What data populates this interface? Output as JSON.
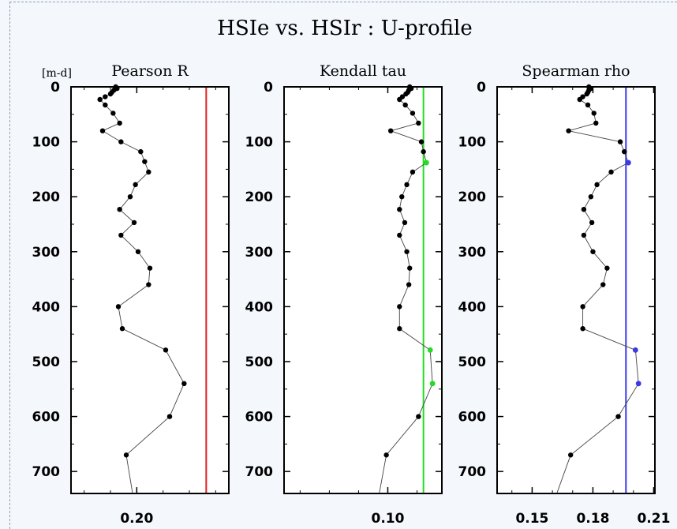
{
  "chart_data": {
    "title": "HSIe vs. HSIr : U-profile",
    "y_unit_label": "[m-d]",
    "type": "line",
    "panels": [
      {
        "title": "Pearson R",
        "xlim": [
          0.175,
          0.235
        ],
        "x_ticks": [
          {
            "value": 0.2,
            "label": "0.20"
          }
        ],
        "ylim": [
          740,
          0
        ],
        "y_ticks": [
          0,
          100,
          200,
          300,
          400,
          500,
          600,
          700
        ],
        "reference_line": {
          "x": 0.2264,
          "color": "#e62020"
        },
        "color": "#000000",
        "points": [
          [
            0.192,
            0
          ],
          [
            0.1925,
            3
          ],
          [
            0.1913,
            6
          ],
          [
            0.1905,
            10
          ],
          [
            0.19,
            13
          ],
          [
            0.188,
            18
          ],
          [
            0.186,
            23
          ],
          [
            0.188,
            33
          ],
          [
            0.191,
            48
          ],
          [
            0.1935,
            66
          ],
          [
            0.187,
            80
          ],
          [
            0.194,
            100
          ],
          [
            0.2015,
            118
          ],
          [
            0.203,
            136
          ],
          [
            0.2045,
            155
          ],
          [
            0.1995,
            178
          ],
          [
            0.1975,
            200
          ],
          [
            0.1935,
            223
          ],
          [
            0.199,
            247
          ],
          [
            0.194,
            270
          ],
          [
            0.2005,
            300
          ],
          [
            0.205,
            330
          ],
          [
            0.2045,
            360
          ],
          [
            0.193,
            400
          ],
          [
            0.1945,
            440
          ],
          [
            0.211,
            479
          ],
          [
            0.218,
            540
          ],
          [
            0.2125,
            600
          ],
          [
            0.196,
            670
          ],
          [
            0.1985,
            742
          ]
        ],
        "highlight_points": []
      },
      {
        "title": "Kendall tau",
        "xlim": [
          0.0645,
          0.1185
        ],
        "x_ticks": [
          {
            "value": 0.1,
            "label": "0.10"
          }
        ],
        "ylim": [
          740,
          0
        ],
        "y_ticks": [
          0,
          100,
          200,
          300,
          400,
          500,
          600,
          700
        ],
        "reference_line": {
          "x": 0.1122,
          "color": "#22dd22"
        },
        "color": "#000000",
        "points": [
          [
            0.1075,
            0
          ],
          [
            0.108,
            3
          ],
          [
            0.1072,
            6
          ],
          [
            0.1068,
            10
          ],
          [
            0.1062,
            13
          ],
          [
            0.105,
            18
          ],
          [
            0.104,
            23
          ],
          [
            0.106,
            33
          ],
          [
            0.1085,
            48
          ],
          [
            0.1105,
            66
          ],
          [
            0.101,
            80
          ],
          [
            0.1115,
            100
          ],
          [
            0.1122,
            118
          ],
          [
            0.1132,
            138
          ],
          [
            0.1085,
            155
          ],
          [
            0.1065,
            178
          ],
          [
            0.1048,
            200
          ],
          [
            0.104,
            223
          ],
          [
            0.1058,
            247
          ],
          [
            0.104,
            270
          ],
          [
            0.1065,
            300
          ],
          [
            0.1075,
            330
          ],
          [
            0.1072,
            360
          ],
          [
            0.104,
            400
          ],
          [
            0.104,
            440
          ],
          [
            0.1145,
            479
          ],
          [
            0.1153,
            540
          ],
          [
            0.1105,
            600
          ],
          [
            0.0995,
            670
          ],
          [
            0.097,
            742
          ]
        ],
        "highlight_points": [
          {
            "x": 0.1132,
            "y": 138
          },
          {
            "x": 0.1145,
            "y": 479
          },
          {
            "x": 0.1153,
            "y": 540
          }
        ]
      },
      {
        "title": "Spearman rho",
        "xlim": [
          0.1327,
          0.2106
        ],
        "x_ticks": [
          {
            "value": 0.15,
            "label": "0.15"
          },
          {
            "value": 0.18,
            "label": "0.18"
          },
          {
            "value": 0.21,
            "label": "0.21"
          }
        ],
        "ylim": [
          740,
          0
        ],
        "y_ticks": [
          0,
          100,
          200,
          300,
          400,
          500,
          600,
          700
        ],
        "reference_line": {
          "x": 0.1963,
          "color": "#3a3ae8"
        },
        "color": "#000000",
        "points": [
          [
            0.178,
            0
          ],
          [
            0.179,
            3
          ],
          [
            0.178,
            6
          ],
          [
            0.1775,
            10
          ],
          [
            0.177,
            13
          ],
          [
            0.175,
            18
          ],
          [
            0.1735,
            23
          ],
          [
            0.1775,
            33
          ],
          [
            0.1805,
            48
          ],
          [
            0.1815,
            66
          ],
          [
            0.168,
            80
          ],
          [
            0.1935,
            100
          ],
          [
            0.1955,
            118
          ],
          [
            0.1975,
            138
          ],
          [
            0.189,
            155
          ],
          [
            0.182,
            178
          ],
          [
            0.179,
            200
          ],
          [
            0.1755,
            223
          ],
          [
            0.1795,
            247
          ],
          [
            0.1755,
            270
          ],
          [
            0.18,
            300
          ],
          [
            0.187,
            330
          ],
          [
            0.185,
            360
          ],
          [
            0.175,
            400
          ],
          [
            0.175,
            440
          ],
          [
            0.201,
            479
          ],
          [
            0.2025,
            540
          ],
          [
            0.1925,
            600
          ],
          [
            0.169,
            670
          ],
          [
            0.162,
            742
          ]
        ],
        "highlight_points": [
          {
            "x": 0.1975,
            "y": 138
          },
          {
            "x": 0.201,
            "y": 479
          },
          {
            "x": 0.2025,
            "y": 540
          }
        ]
      }
    ]
  }
}
